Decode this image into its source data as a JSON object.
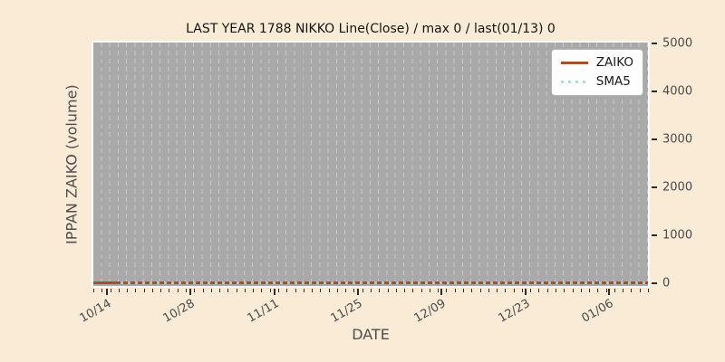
{
  "chart_data": {
    "type": "line",
    "title": "LAST YEAR 1788 NIKKO Line(Close) / max 0 / last(01/13) 0",
    "xlabel": "DATE",
    "ylabel": "IPPAN ZAIKO (volume)",
    "x_range": [
      "10/14",
      "01/13"
    ],
    "x_tick_labels": [
      "10/14",
      "10/28",
      "11/11",
      "11/25",
      "12/09",
      "12/23",
      "01/06"
    ],
    "x_tick_pct": [
      2.4,
      17.5,
      32.6,
      47.7,
      62.8,
      77.9,
      93.0
    ],
    "x_minor_divisions": 66,
    "y_ticks": [
      0,
      1000,
      2000,
      3000,
      4000,
      5000
    ],
    "ylim": [
      -60,
      5020
    ],
    "grid": "vertical-dashed-daily",
    "legend_position": "upper right",
    "series": [
      {
        "name": "ZAIKO",
        "style": "solid",
        "color": "#a0522d",
        "constant_value": 0
      },
      {
        "name": "SMA5",
        "style": "dotted",
        "color": "#add8e6",
        "constant_value": 0
      }
    ],
    "annotations": {
      "max": 0,
      "last_date": "01/13",
      "last_value": 0
    }
  },
  "colors": {
    "page_bg": "#faebd7",
    "plot_bg": "#a9a9a9",
    "grid": "#c9c9c9",
    "spine": "#fbfbfb",
    "tick_mark": "#2b2b2b",
    "tick_text": "#4a4a4a",
    "axis_label_text": "#4d4d4d",
    "title_text": "#141414",
    "legend_bg": "#fdfdfd",
    "legend_border": "#b5b5b5",
    "zaiko_line": "#a0522d",
    "sma5_line": "#add8e6"
  }
}
